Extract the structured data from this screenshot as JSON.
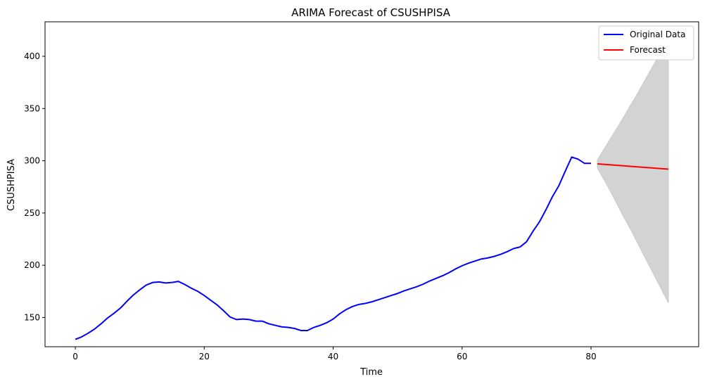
{
  "chart_data": {
    "type": "line",
    "title": "ARIMA Forecast of CSUSHPISA",
    "xlabel": "Time",
    "ylabel": "CSUSHPISA",
    "xlim": [
      -4.7,
      96.7
    ],
    "ylim": [
      122,
      433
    ],
    "xticks": [
      0,
      20,
      40,
      60,
      80
    ],
    "yticks": [
      150,
      200,
      250,
      300,
      350,
      400
    ],
    "grid": false,
    "legend_position": "top-right",
    "series": [
      {
        "name": "Original Data",
        "color": "#0000ff",
        "x": [
          0,
          1,
          2,
          3,
          4,
          5,
          6,
          7,
          8,
          9,
          10,
          11,
          12,
          13,
          14,
          15,
          16,
          17,
          18,
          19,
          20,
          21,
          22,
          23,
          24,
          25,
          26,
          27,
          28,
          29,
          30,
          31,
          32,
          33,
          34,
          35,
          36,
          37,
          38,
          39,
          40,
          41,
          42,
          43,
          44,
          45,
          46,
          47,
          48,
          49,
          50,
          51,
          52,
          53,
          54,
          55,
          56,
          57,
          58,
          59,
          60,
          61,
          62,
          63,
          64,
          65,
          66,
          67,
          68,
          69,
          70,
          71,
          72,
          73,
          74,
          75,
          76,
          77,
          78,
          79,
          80
        ],
        "y": [
          129,
          131.5,
          135,
          139,
          144,
          149.5,
          154,
          159,
          165.5,
          171.5,
          176.5,
          181,
          183.5,
          184,
          183,
          183.5,
          184.5,
          181.5,
          178,
          175,
          171,
          166.5,
          162,
          156.5,
          150.5,
          148,
          148.5,
          148,
          146.5,
          146.5,
          144,
          142.5,
          141,
          140.5,
          139.5,
          137.5,
          137.5,
          140.5,
          142.5,
          145,
          148.5,
          153.5,
          157.5,
          160.5,
          162.5,
          163.5,
          165,
          167,
          169,
          171,
          173,
          175.5,
          177.5,
          179.5,
          182,
          185,
          187.5,
          190,
          193,
          196.5,
          199.5,
          202,
          204,
          206,
          207,
          208.5,
          210.5,
          213,
          216,
          217.5,
          222.5,
          232.5,
          241.5,
          253,
          265.5,
          276,
          290,
          303.5,
          301.5,
          297.5,
          297.5
        ]
      },
      {
        "name": "Forecast",
        "color": "#ff0000",
        "x": [
          81,
          92
        ],
        "y": [
          297,
          292
        ]
      }
    ],
    "confidence_interval": {
      "color": "#d3d3d3",
      "x": [
        81,
        82,
        83,
        84,
        85,
        86,
        87,
        88,
        89,
        90,
        91,
        92
      ],
      "lower": [
        293,
        282,
        271,
        259,
        247,
        236,
        224,
        212,
        200,
        188,
        176,
        164
      ],
      "upper": [
        301,
        311,
        321,
        331,
        341,
        352,
        362,
        373,
        384,
        395,
        406,
        411
      ]
    }
  }
}
